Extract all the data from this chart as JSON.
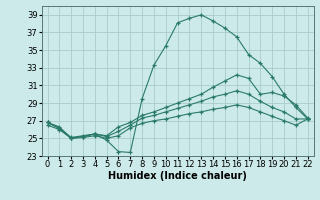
{
  "bg_color": "#cceaea",
  "grid_color": "#aacccc",
  "line_color": "#2a7a6a",
  "xlabel": "Humidex (Indice chaleur)",
  "xlabel_fontsize": 7,
  "tick_fontsize": 6,
  "xlim": [
    -0.5,
    22.5
  ],
  "ylim": [
    23,
    40
  ],
  "yticks": [
    23,
    25,
    27,
    29,
    31,
    33,
    35,
    37,
    39
  ],
  "xticks": [
    0,
    1,
    2,
    3,
    4,
    5,
    6,
    7,
    8,
    9,
    10,
    11,
    12,
    13,
    14,
    15,
    16,
    17,
    18,
    19,
    20,
    21,
    22
  ],
  "series": [
    {
      "x": [
        0,
        1,
        2,
        3,
        4,
        5,
        6,
        7,
        8,
        9,
        10,
        11,
        12,
        13,
        14,
        15,
        16,
        17,
        18,
        19,
        20,
        21,
        22
      ],
      "y": [
        26.8,
        26.3,
        25.0,
        25.2,
        25.5,
        24.8,
        23.5,
        23.4,
        29.5,
        33.3,
        35.5,
        38.1,
        38.6,
        39.0,
        38.3,
        37.5,
        36.5,
        34.5,
        33.5,
        32.0,
        30.0,
        28.5,
        27.2
      ]
    },
    {
      "x": [
        0,
        1,
        2,
        3,
        4,
        5,
        6,
        7,
        8,
        9,
        10,
        11,
        12,
        13,
        14,
        15,
        16,
        17,
        18,
        19,
        20,
        21,
        22
      ],
      "y": [
        26.8,
        26.2,
        25.1,
        25.3,
        25.5,
        25.3,
        26.3,
        26.8,
        27.6,
        28.0,
        28.5,
        29.0,
        29.5,
        30.0,
        30.8,
        31.5,
        32.2,
        31.8,
        30.0,
        30.2,
        29.8,
        28.8,
        27.3
      ]
    },
    {
      "x": [
        0,
        1,
        2,
        3,
        4,
        5,
        6,
        7,
        8,
        9,
        10,
        11,
        12,
        13,
        14,
        15,
        16,
        17,
        18,
        19,
        20,
        21,
        22
      ],
      "y": [
        26.8,
        26.1,
        25.0,
        25.2,
        25.5,
        25.2,
        25.8,
        26.5,
        27.3,
        27.6,
        28.0,
        28.4,
        28.8,
        29.2,
        29.7,
        30.0,
        30.4,
        30.0,
        29.2,
        28.5,
        28.0,
        27.2,
        27.2
      ]
    },
    {
      "x": [
        0,
        1,
        2,
        3,
        4,
        5,
        6,
        7,
        8,
        9,
        10,
        11,
        12,
        13,
        14,
        15,
        16,
        17,
        18,
        19,
        20,
        21,
        22
      ],
      "y": [
        26.5,
        26.0,
        25.0,
        25.1,
        25.3,
        25.0,
        25.3,
        26.2,
        26.7,
        27.0,
        27.2,
        27.5,
        27.8,
        28.0,
        28.3,
        28.5,
        28.8,
        28.5,
        28.0,
        27.5,
        27.0,
        26.5,
        27.2
      ]
    }
  ]
}
